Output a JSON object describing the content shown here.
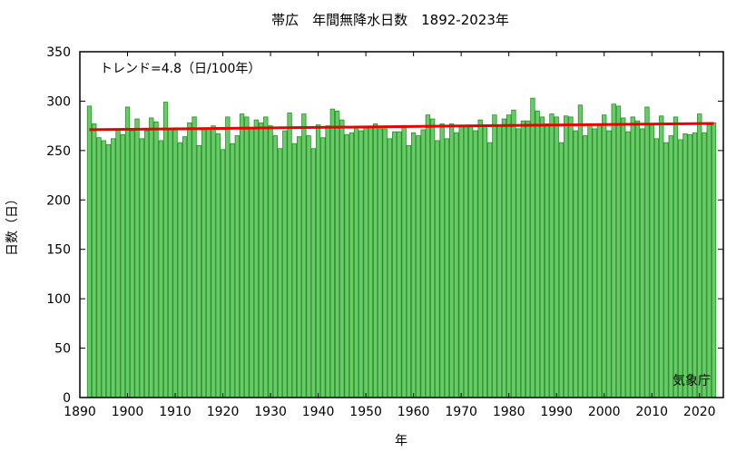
{
  "chart_data": {
    "type": "bar",
    "title": "帯広　年間無降水日数　1892-2023年",
    "xlabel": "年",
    "ylabel": "日数（日）",
    "trend_label": "トレンド=4.8（日/100年）",
    "credit": "気象庁",
    "xlim": [
      1890,
      2025
    ],
    "ylim": [
      0,
      350
    ],
    "x_ticks": [
      1890,
      1900,
      1910,
      1920,
      1930,
      1940,
      1950,
      1960,
      1970,
      1980,
      1990,
      2000,
      2010,
      2020
    ],
    "y_ticks": [
      0,
      50,
      100,
      150,
      200,
      250,
      300,
      350
    ],
    "grid": false,
    "colors": {
      "bar_fill": "#66cc66",
      "bar_stroke": "#2e8b2e",
      "trend": "#ee0000"
    },
    "series": [
      {
        "x": [
          1892,
          1893,
          1894,
          1895,
          1896,
          1897,
          1898,
          1899,
          1900,
          1901,
          1902,
          1903,
          1904,
          1905,
          1906,
          1907,
          1908,
          1909,
          1910,
          1911,
          1912,
          1913,
          1914,
          1915,
          1916,
          1917,
          1918,
          1919,
          1920,
          1921,
          1922,
          1923,
          1924,
          1925,
          1926,
          1927,
          1928,
          1929,
          1930,
          1931,
          1932,
          1933,
          1934,
          1935,
          1936,
          1937,
          1938,
          1939,
          1940,
          1941,
          1942,
          1943,
          1944,
          1945,
          1946,
          1947,
          1948,
          1949,
          1950,
          1951,
          1952,
          1953,
          1954,
          1955,
          1956,
          1957,
          1958,
          1959,
          1960,
          1961,
          1962,
          1963,
          1964,
          1965,
          1966,
          1967,
          1968,
          1969,
          1970,
          1971,
          1972,
          1973,
          1974,
          1975,
          1976,
          1977,
          1978,
          1979,
          1980,
          1981,
          1982,
          1983,
          1984,
          1985,
          1986,
          1987,
          1988,
          1989,
          1990,
          1991,
          1992,
          1993,
          1994,
          1995,
          1996,
          1997,
          1998,
          1999,
          2000,
          2001,
          2002,
          2003,
          2004,
          2005,
          2006,
          2007,
          2008,
          2009,
          2010,
          2011,
          2012,
          2013,
          2014,
          2015,
          2016,
          2017,
          2018,
          2019,
          2020,
          2021,
          2022,
          2023
        ],
        "values": [
          295,
          277,
          263,
          260,
          256,
          262,
          272,
          266,
          294,
          270,
          282,
          262,
          270,
          283,
          279,
          260,
          299,
          271,
          273,
          258,
          264,
          278,
          284,
          255,
          271,
          272,
          275,
          267,
          251,
          284,
          257,
          265,
          287,
          284,
          273,
          281,
          278,
          284,
          275,
          265,
          252,
          270,
          288,
          257,
          264,
          287,
          265,
          252,
          276,
          263,
          275,
          292,
          290,
          281,
          266,
          268,
          274,
          270,
          273,
          273,
          277,
          272,
          272,
          262,
          269,
          269,
          273,
          255,
          268,
          265,
          271,
          286,
          282,
          260,
          277,
          262,
          277,
          268,
          274,
          274,
          275,
          270,
          281,
          276,
          258,
          286,
          276,
          282,
          286,
          291,
          272,
          280,
          280,
          303,
          290,
          284,
          277,
          287,
          284,
          258,
          285,
          284,
          270,
          296,
          265,
          276,
          272,
          276,
          286,
          270,
          297,
          295,
          283,
          269,
          284,
          280,
          272,
          294,
          276,
          262,
          285,
          258,
          265,
          284,
          261,
          267,
          266,
          268,
          287,
          268,
          276,
          278
        ]
      }
    ],
    "trend_line": {
      "x": [
        1892,
        2023
      ],
      "y": [
        271.1,
        277.4
      ]
    }
  }
}
